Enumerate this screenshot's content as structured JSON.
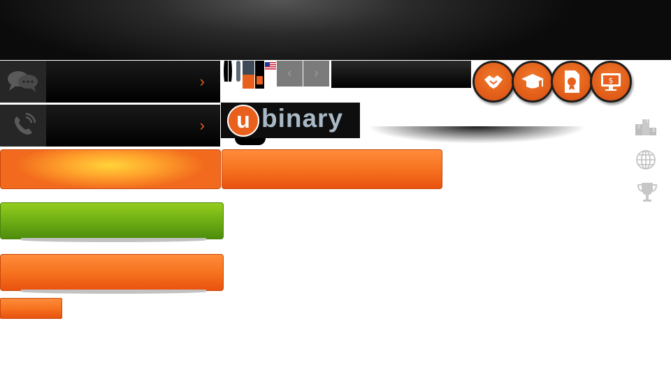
{
  "header": {
    "title": ""
  },
  "contact": [
    {
      "icon": "chat-bubbles-icon",
      "label": ""
    },
    {
      "icon": "phone-icon",
      "label": ""
    }
  ],
  "logo": {
    "letter": "u",
    "word": "binary"
  },
  "carousel": {
    "prev_symbol": "‹",
    "next_symbol": "›"
  },
  "feature_icons": [
    "handshake-icon",
    "graduation-cap-icon",
    "document-seal-icon",
    "monitor-dollar-icon"
  ],
  "side_icons": [
    "podium-icon",
    "globe-icon",
    "trophy-icon"
  ],
  "podium": {
    "first": "1",
    "second": "2",
    "third": "3"
  },
  "chevron": "›",
  "buttons": {
    "glow_label": "",
    "orange_wide_label": "",
    "green_label": "",
    "orange_label": "",
    "small_label": ""
  },
  "colors": {
    "accent_orange": "#e8601c",
    "green": "#6fae14",
    "dark": "#0b0b0b",
    "logo_text": "#a9b9c6"
  }
}
